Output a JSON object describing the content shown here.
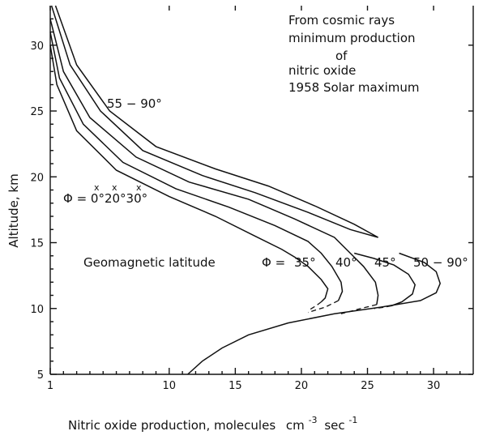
{
  "chart_data": {
    "type": "line",
    "xlabel": "Nitric oxide production,  molecules",
    "xunit_base": "cm",
    "xunit_exp1": "-3",
    "xunit_mid": "sec",
    "xunit_exp2": "-1",
    "ylabel": "Altitude,    km",
    "xlim": [
      1,
      33
    ],
    "ylim": [
      5,
      33
    ],
    "xticks": [
      1,
      10,
      15,
      20,
      25,
      30
    ],
    "xtick_labels": [
      "1",
      "10",
      "15",
      "20",
      "25",
      "30"
    ],
    "yticks": [
      5,
      10,
      15,
      20,
      25,
      30
    ],
    "ytick_labels": [
      "5",
      "10",
      "15",
      "20",
      "25",
      "30"
    ],
    "title_lines": [
      "From cosmic rays",
      "minimum production",
      "of",
      "nitric oxide",
      "1958  Solar maximum"
    ],
    "annotations": {
      "top_curve": "55 − 90°",
      "phi_low": "Φ = 0°20°30°",
      "phi_low_marks": [
        "x",
        "x",
        "x"
      ],
      "geomag": "Geomagnetic latitude",
      "phi_eq": "Φ =",
      "lat_35": "35°",
      "lat_40": "40°",
      "lat_45": "45°",
      "lat_50": "50 − 90°"
    },
    "series": [
      {
        "values": [
          [
            1.4,
            33.0
          ],
          [
            3.0,
            28.5
          ],
          [
            5.5,
            25.0
          ],
          [
            9.0,
            22.3
          ],
          [
            13.5,
            20.6
          ],
          [
            17.5,
            19.3
          ],
          [
            21.0,
            17.8
          ],
          [
            24.0,
            16.4
          ],
          [
            25.8,
            15.4
          ]
        ],
        "dashed": []
      },
      {
        "values": [
          [
            1.1,
            33.0
          ],
          [
            2.5,
            28.5
          ],
          [
            4.8,
            25.0
          ],
          [
            8.0,
            22.0
          ],
          [
            12.5,
            20.1
          ],
          [
            16.5,
            18.8
          ],
          [
            20.5,
            17.3
          ],
          [
            23.7,
            16.0
          ],
          [
            25.8,
            15.4
          ]
        ],
        "dashed": []
      },
      {
        "values": [
          [
            1.0,
            32.0
          ],
          [
            2.0,
            28.0
          ],
          [
            4.0,
            24.5
          ],
          [
            7.5,
            21.5
          ],
          [
            11.5,
            19.6
          ],
          [
            16.0,
            18.3
          ],
          [
            19.5,
            16.8
          ],
          [
            22.5,
            15.4
          ],
          [
            23.7,
            14.2
          ],
          [
            24.7,
            13.2
          ],
          [
            25.6,
            12.0
          ],
          [
            25.8,
            11.0
          ],
          [
            25.7,
            10.3
          ]
        ],
        "dashed": [
          [
            25.7,
            10.3
          ],
          [
            24.5,
            10.0
          ],
          [
            23.0,
            9.6
          ]
        ]
      },
      {
        "values": [
          [
            1.0,
            31.0
          ],
          [
            1.7,
            27.5
          ],
          [
            3.5,
            24.0
          ],
          [
            6.5,
            21.1
          ],
          [
            10.5,
            19.1
          ],
          [
            14.5,
            17.7
          ],
          [
            18.0,
            16.3
          ],
          [
            20.5,
            15.1
          ],
          [
            21.5,
            14.2
          ],
          [
            22.3,
            13.2
          ],
          [
            23.0,
            12.0
          ],
          [
            23.1,
            11.3
          ],
          [
            22.8,
            10.6
          ]
        ],
        "dashed": [
          [
            22.8,
            10.6
          ],
          [
            21.8,
            10.1
          ],
          [
            20.5,
            9.7
          ]
        ]
      },
      {
        "values": [
          [
            1.0,
            30.0
          ],
          [
            1.5,
            27.0
          ],
          [
            3.0,
            23.5
          ],
          [
            6.0,
            20.5
          ],
          [
            10.0,
            18.5
          ],
          [
            13.5,
            17.0
          ],
          [
            16.5,
            15.5
          ],
          [
            18.5,
            14.5
          ],
          [
            19.5,
            13.9
          ],
          [
            20.5,
            13.2
          ],
          [
            21.5,
            12.2
          ],
          [
            22.0,
            11.5
          ],
          [
            21.8,
            10.8
          ],
          [
            21.5,
            10.5
          ]
        ],
        "dashed": [
          [
            21.5,
            10.5
          ],
          [
            21.1,
            10.2
          ],
          [
            20.6,
            9.9
          ]
        ]
      },
      {
        "values": [
          [
            24.0,
            14.2
          ],
          [
            25.5,
            13.8
          ],
          [
            27.0,
            13.3
          ],
          [
            28.1,
            12.6
          ],
          [
            28.6,
            11.8
          ],
          [
            28.4,
            11.1
          ],
          [
            27.6,
            10.5
          ],
          [
            26.8,
            10.2
          ]
        ],
        "dashed": [
          [
            26.8,
            10.2
          ],
          [
            26.3,
            10.1
          ],
          [
            25.5,
            10.0
          ]
        ]
      },
      {
        "values": [
          [
            27.4,
            14.2
          ],
          [
            29.3,
            13.5
          ],
          [
            30.2,
            12.8
          ],
          [
            30.5,
            11.9
          ],
          [
            30.2,
            11.2
          ],
          [
            29.0,
            10.6
          ],
          [
            26.0,
            10.1
          ],
          [
            22.5,
            9.6
          ],
          [
            19.0,
            8.9
          ],
          [
            16.0,
            8.0
          ],
          [
            14.0,
            7.0
          ],
          [
            12.5,
            6.0
          ],
          [
            11.4,
            5.0
          ]
        ],
        "dashed": []
      }
    ]
  }
}
